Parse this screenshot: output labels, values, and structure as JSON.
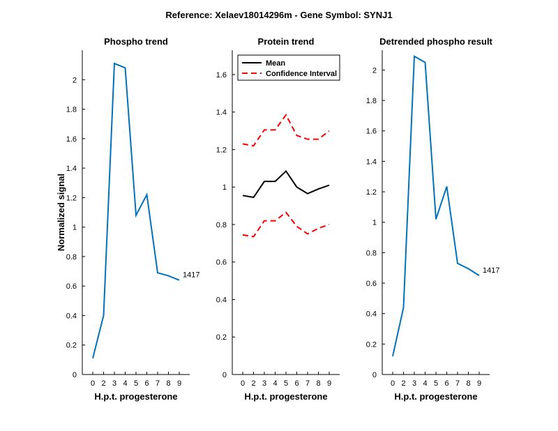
{
  "figure": {
    "suptitle": "Reference:  Xelaev18014296m - Gene Symbol:  SYNJ1"
  },
  "colors": {
    "phospho": "#0072BD",
    "mean": "#000000",
    "ci": "#FF0000"
  },
  "chart_data": [
    {
      "type": "line",
      "title": "Phospho trend",
      "xlabel": "H.p.t. progesterone",
      "ylabel": "Normalized signal",
      "x_ticks": [
        "0",
        "2",
        "3",
        "4",
        "5",
        "6",
        "7",
        "8",
        "9"
      ],
      "y_ticks": [
        "0",
        "0.2",
        "0.4",
        "0.6",
        "0.8",
        "1",
        "1.2",
        "1.4",
        "1.6",
        "1.8",
        "2"
      ],
      "ylim": [
        0,
        2.2
      ],
      "grid": false,
      "series": [
        {
          "values": [
            0.11,
            0.4,
            2.11,
            2.08,
            1.08,
            1.22,
            0.69,
            0.67,
            0.64
          ],
          "end_label": "1417"
        }
      ]
    },
    {
      "type": "line",
      "title": "Protein trend",
      "xlabel": "H.p.t. progesterone",
      "ylabel": "",
      "x_ticks": [
        "0",
        "2",
        "3",
        "4",
        "5",
        "6",
        "7",
        "8",
        "9"
      ],
      "y_ticks": [
        "0",
        "0.2",
        "0.4",
        "0.6",
        "0.8",
        "1",
        "1.2",
        "1.4",
        "1.6"
      ],
      "ylim": [
        0,
        1.73
      ],
      "grid": false,
      "legend": {
        "placement": "top-left",
        "entries": [
          "Mean",
          "Confidence Interval"
        ]
      },
      "series": [
        {
          "name": "Mean",
          "style": "solid",
          "values": [
            0.955,
            0.945,
            1.03,
            1.03,
            1.085,
            1.0,
            0.965,
            0.99,
            1.01
          ]
        },
        {
          "name": "Confidence Interval",
          "style": "dashed",
          "values": [
            1.23,
            1.22,
            1.305,
            1.305,
            1.385,
            1.275,
            1.255,
            1.255,
            1.3
          ]
        },
        {
          "name": "Confidence Interval",
          "style": "dashed",
          "legend": false,
          "values": [
            0.745,
            0.735,
            0.82,
            0.82,
            0.865,
            0.79,
            0.75,
            0.78,
            0.8
          ]
        }
      ]
    },
    {
      "type": "line",
      "title": "Detrended phospho result",
      "xlabel": "H.p.t. progesterone",
      "ylabel": "",
      "x_ticks": [
        "0",
        "2",
        "3",
        "4",
        "5",
        "6",
        "7",
        "8",
        "9"
      ],
      "y_ticks": [
        "0",
        "0.2",
        "0.4",
        "0.6",
        "0.8",
        "1",
        "1.2",
        "1.4",
        "1.6",
        "1.8",
        "2"
      ],
      "ylim": [
        0,
        2.13
      ],
      "grid": false,
      "series": [
        {
          "values": [
            0.12,
            0.44,
            2.09,
            2.05,
            1.02,
            1.235,
            0.73,
            0.695,
            0.65
          ],
          "end_label": "1417"
        }
      ]
    }
  ]
}
